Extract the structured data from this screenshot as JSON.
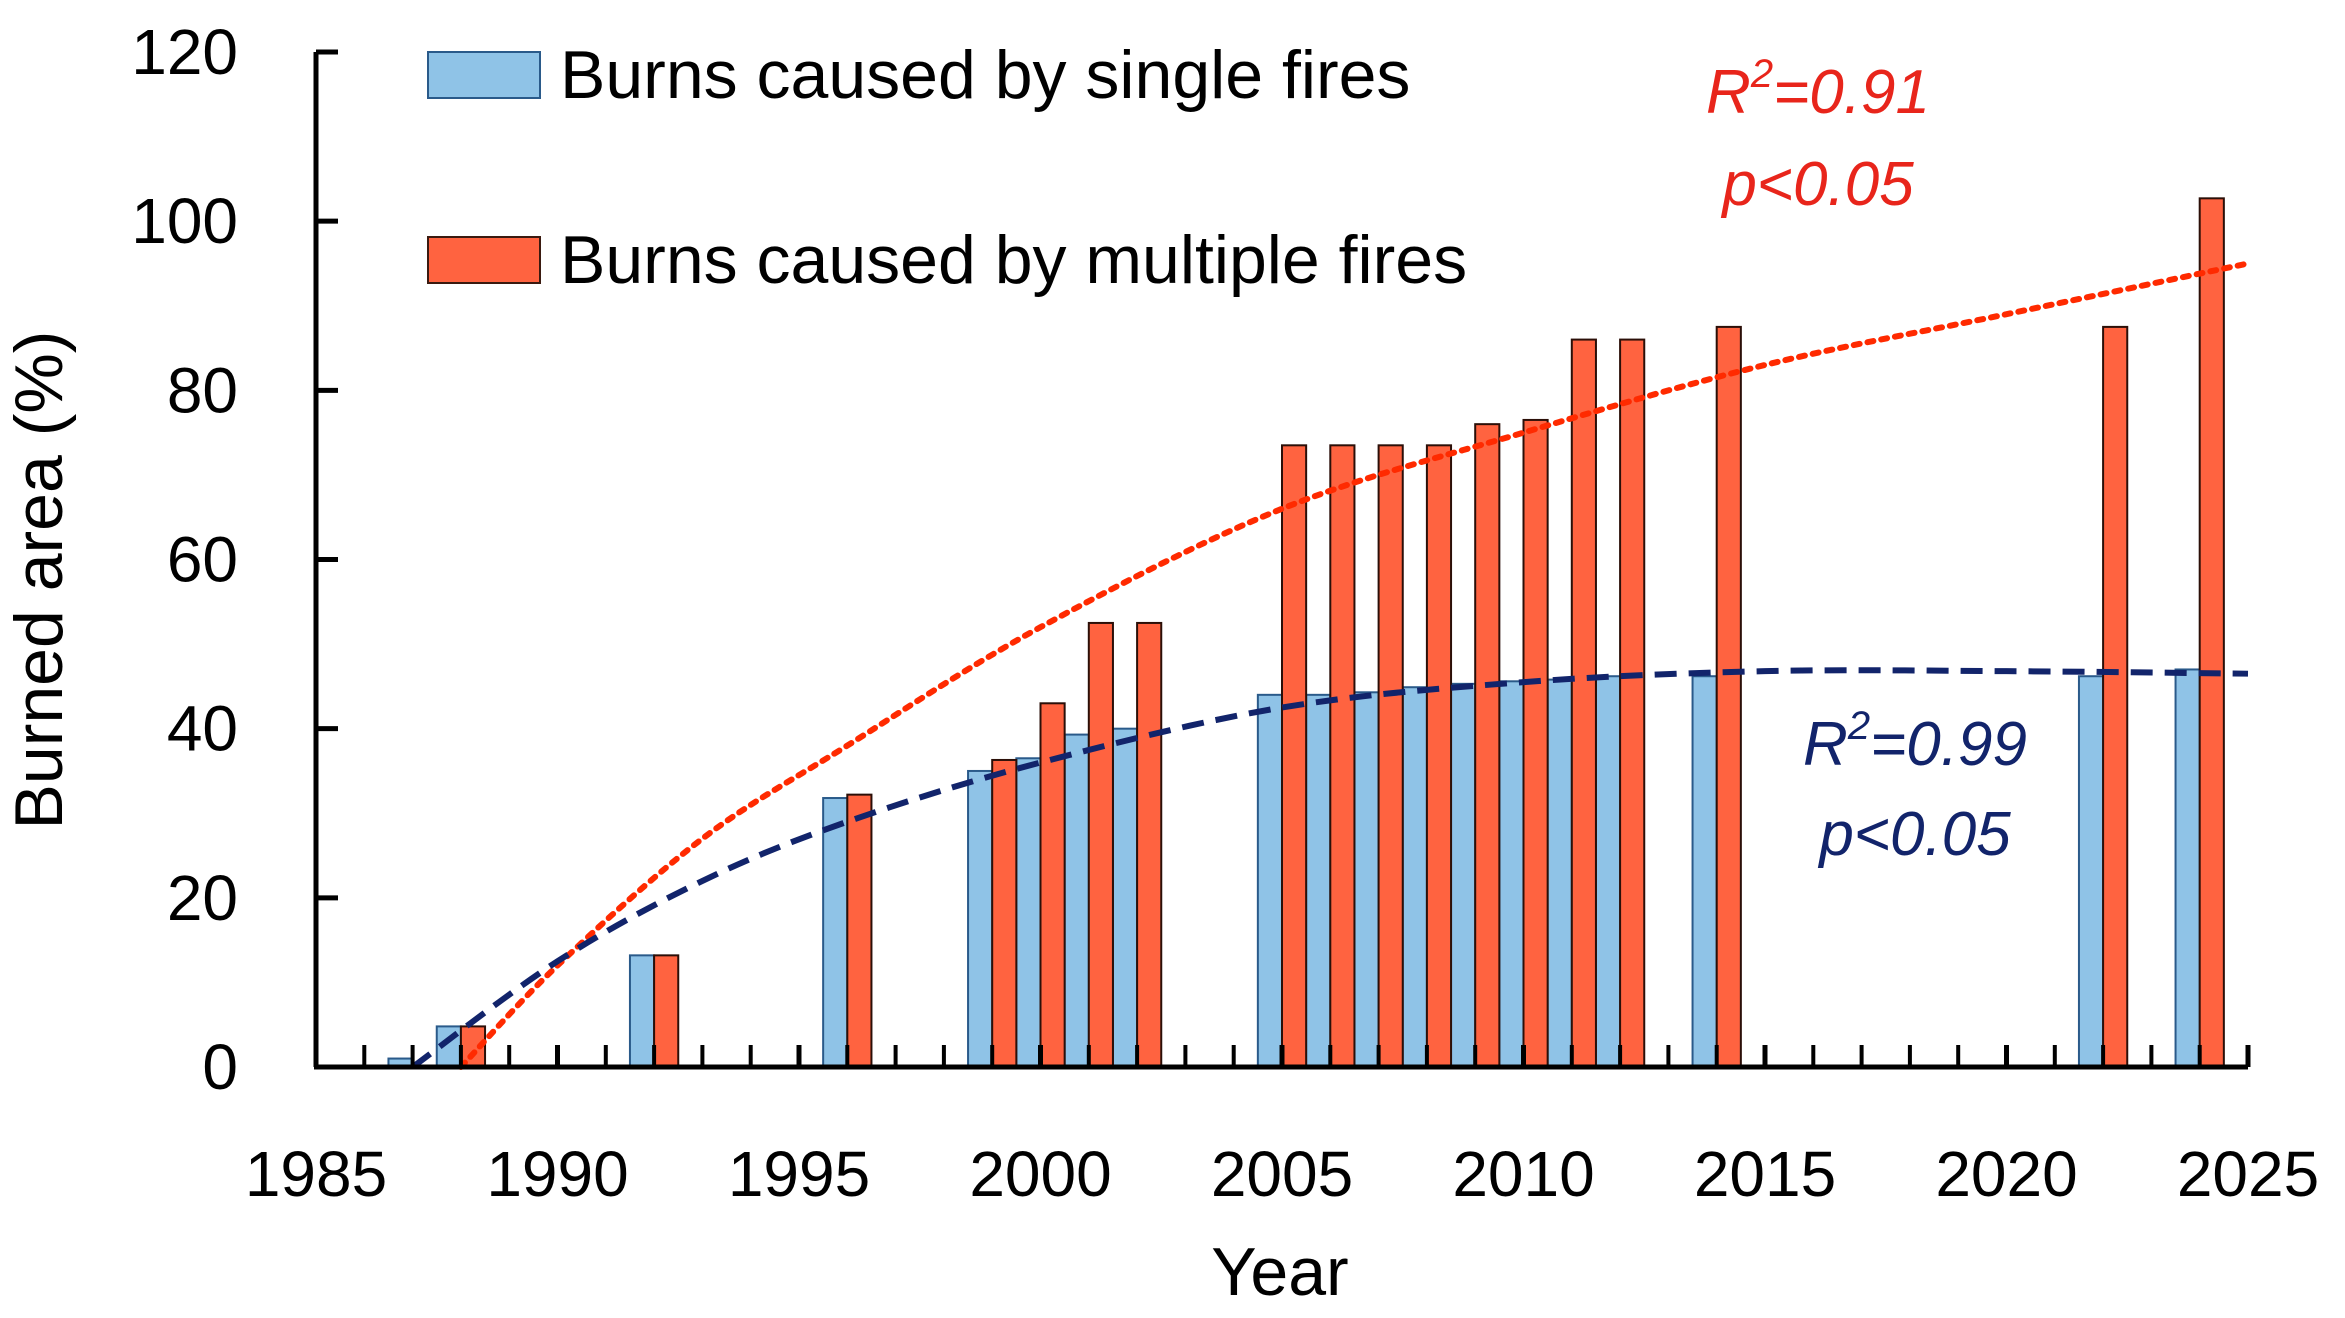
{
  "chart_data": {
    "type": "bar",
    "xlabel": "Year",
    "ylabel": "Burned area (%)",
    "xlim": [
      1985,
      2025
    ],
    "ylim": [
      0,
      120
    ],
    "xticks": [
      1985,
      1990,
      1995,
      2000,
      2005,
      2010,
      2015,
      2020,
      2025
    ],
    "yticks": [
      0,
      20,
      40,
      60,
      80,
      100,
      120
    ],
    "grid": false,
    "legend_position": "top-left",
    "series": [
      {
        "name": "Burns caused by single fires",
        "color": "#8fc3e7",
        "points": [
          {
            "x": 1987,
            "y": 1
          },
          {
            "x": 1988,
            "y": 4.8
          },
          {
            "x": 1992,
            "y": 13.2
          },
          {
            "x": 1996,
            "y": 31.8
          },
          {
            "x": 1999,
            "y": 35
          },
          {
            "x": 2000,
            "y": 36.5
          },
          {
            "x": 2001,
            "y": 39.3
          },
          {
            "x": 2002,
            "y": 40
          },
          {
            "x": 2005,
            "y": 44
          },
          {
            "x": 2006,
            "y": 44
          },
          {
            "x": 2007,
            "y": 44.3
          },
          {
            "x": 2008,
            "y": 44.9
          },
          {
            "x": 2009,
            "y": 45.3
          },
          {
            "x": 2010,
            "y": 45.6
          },
          {
            "x": 2011,
            "y": 45.8
          },
          {
            "x": 2012,
            "y": 46.2
          },
          {
            "x": 2014,
            "y": 46.2
          },
          {
            "x": 2022,
            "y": 46.2
          },
          {
            "x": 2024,
            "y": 47
          }
        ]
      },
      {
        "name": "Burns caused by multiple fires",
        "color": "#ff6340",
        "points": [
          {
            "x": 1988,
            "y": 4.8
          },
          {
            "x": 1992,
            "y": 13.2
          },
          {
            "x": 1996,
            "y": 32.2
          },
          {
            "x": 1999,
            "y": 36.3
          },
          {
            "x": 2000,
            "y": 43
          },
          {
            "x": 2001,
            "y": 52.5
          },
          {
            "x": 2002,
            "y": 52.5
          },
          {
            "x": 2005,
            "y": 73.5
          },
          {
            "x": 2006,
            "y": 73.5
          },
          {
            "x": 2007,
            "y": 73.5
          },
          {
            "x": 2008,
            "y": 73.5
          },
          {
            "x": 2009,
            "y": 76
          },
          {
            "x": 2010,
            "y": 76.5
          },
          {
            "x": 2011,
            "y": 86
          },
          {
            "x": 2012,
            "y": 86
          },
          {
            "x": 2014,
            "y": 87.5
          },
          {
            "x": 2022,
            "y": 87.5
          },
          {
            "x": 2024,
            "y": 102.7
          }
        ]
      }
    ],
    "trendlines": [
      {
        "color": "#ff2a00",
        "style": "dotted",
        "points": [
          [
            1988,
            0
          ],
          [
            1990,
            12
          ],
          [
            1993,
            27
          ],
          [
            1996,
            38
          ],
          [
            2000,
            52
          ],
          [
            2005,
            66
          ],
          [
            2010,
            75
          ],
          [
            2015,
            83
          ],
          [
            2020,
            89
          ],
          [
            2025,
            95
          ]
        ]
      },
      {
        "color": "#12246b",
        "style": "dashed",
        "points": [
          [
            1987,
            0
          ],
          [
            1990,
            12.5
          ],
          [
            1993,
            22
          ],
          [
            1996,
            29
          ],
          [
            2000,
            36
          ],
          [
            2005,
            42.5
          ],
          [
            2010,
            45.5
          ],
          [
            2015,
            46.8
          ],
          [
            2020,
            46.8
          ],
          [
            2025,
            46.5
          ]
        ]
      }
    ],
    "annotations": [
      {
        "line1_base": "R",
        "line1_sup": "2",
        "line1_rest": "=0.91",
        "line2": "p<0.05",
        "color": "#e8251b"
      },
      {
        "line1_base": "R",
        "line1_sup": "2",
        "line1_rest": "=0.99",
        "line2": "p<0.05",
        "color": "#12246b"
      }
    ]
  }
}
